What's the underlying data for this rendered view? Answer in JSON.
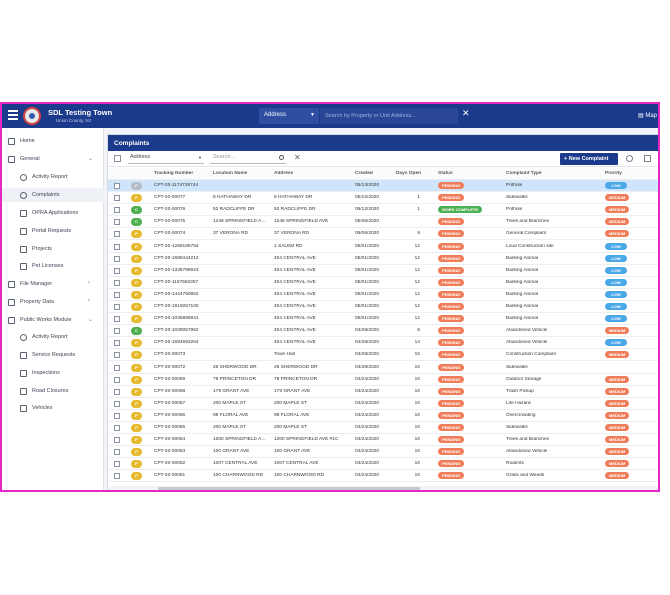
{
  "header": {
    "title": "SDL Testing Town",
    "subtitle": "Union County, NJ",
    "search_scope": "Address",
    "search_placeholder": "Search by Property or Unit Address...",
    "map_label": "Map"
  },
  "sidebar": {
    "items": [
      {
        "label": "Home",
        "icon": "home-icon",
        "level": 0
      },
      {
        "label": "General",
        "icon": "list-icon",
        "level": 0,
        "expanded": true
      },
      {
        "label": "Activity Report",
        "icon": "activity-icon",
        "level": 1
      },
      {
        "label": "Complaints",
        "icon": "info-icon",
        "level": 1,
        "active": true
      },
      {
        "label": "OPRA Applications",
        "icon": "document-icon",
        "level": 1
      },
      {
        "label": "Portal Requests",
        "icon": "request-icon",
        "level": 1
      },
      {
        "label": "Projects",
        "icon": "projects-icon",
        "level": 1
      },
      {
        "label": "Pet Licenses",
        "icon": "paw-icon",
        "level": 1
      },
      {
        "label": "File Manager",
        "icon": "folder-icon",
        "level": 0,
        "expanded": false
      },
      {
        "label": "Property Data",
        "icon": "building-icon",
        "level": 0,
        "expanded": false
      },
      {
        "label": "Public Works Module",
        "icon": "grid-icon",
        "level": 0,
        "expanded": true
      },
      {
        "label": "Activity Report",
        "icon": "activity-icon",
        "level": 1
      },
      {
        "label": "Service Requests",
        "icon": "service-icon",
        "level": 1
      },
      {
        "label": "Inspections",
        "icon": "inspection-icon",
        "level": 1
      },
      {
        "label": "Road Closures",
        "icon": "road-icon",
        "level": 1
      },
      {
        "label": "Vehicles",
        "icon": "truck-icon",
        "level": 1
      }
    ]
  },
  "main": {
    "title": "Complaints",
    "filter_field": "Address",
    "search_placeholder": "Search...",
    "new_button": "New Complaint",
    "columns": [
      "Tracking Number",
      "Location Name",
      "Address",
      "Created",
      "Days Open",
      "Status",
      "Complaint Type",
      "Priority"
    ],
    "rows": [
      {
        "dot": "P",
        "tracking": "CPT-20-1174726744",
        "location": "",
        "address": "",
        "created": "05/13/2020",
        "days": "",
        "status": "PENDING",
        "type": "Pothole",
        "priority": "LOW",
        "selected": true
      },
      {
        "dot": "P",
        "tracking": "CPT-20-00077",
        "location": "8 HATHAWAY DR",
        "address": "8 HATHAWAY DR",
        "created": "05/12/2020",
        "days": "1",
        "status": "PENDING",
        "type": "Sidewalks",
        "priority": "MEDIUM"
      },
      {
        "dot": "C",
        "tracking": "CPT-20-00076",
        "location": "52 RADCLIFFE DR",
        "address": "52 RADCLIFFE DR",
        "created": "05/12/2020",
        "days": "1",
        "status": "WORK COMPLETE",
        "type": "Pothole",
        "priority": "MEDIUM"
      },
      {
        "dot": "C",
        "tracking": "CPT-20-00075",
        "location": "1248 SPRINGFIELD A...",
        "address": "1248 SPRINGFIELD AVE",
        "created": "05/06/2020",
        "days": "",
        "status": "PENDING",
        "type": "Trees and Branches",
        "priority": "MEDIUM"
      },
      {
        "dot": "P",
        "tracking": "CPT-20-00074",
        "location": "37 VERONA RD",
        "address": "37 VERONA RD",
        "created": "05/06/2020",
        "days": "6",
        "status": "PENDING",
        "type": "General Complaint",
        "priority": "MEDIUM"
      },
      {
        "dot": "P",
        "tracking": "CPT-20-1268185754",
        "location": "",
        "address": "1 SALEM RD",
        "created": "05/01/2020",
        "days": "12",
        "status": "PENDING",
        "type": "Loud Construction site",
        "priority": "LOW"
      },
      {
        "dot": "P",
        "tracking": "CPT-20-1689444212",
        "location": "",
        "address": "404 CENTRAL AVE",
        "created": "05/01/2020",
        "days": "12",
        "status": "PENDING",
        "type": "Barking Animal",
        "priority": "LOW"
      },
      {
        "dot": "P",
        "tracking": "CPT-20-1336798923",
        "location": "",
        "address": "404 CENTRAL AVE",
        "created": "05/01/2020",
        "days": "12",
        "status": "PENDING",
        "type": "Barking Animal",
        "priority": "LOW"
      },
      {
        "dot": "P",
        "tracking": "CPT-20-1167682357",
        "location": "",
        "address": "404 CENTRAL AVE",
        "created": "05/01/2020",
        "days": "12",
        "status": "PENDING",
        "type": "Barking Animal",
        "priority": "LOW"
      },
      {
        "dot": "P",
        "tracking": "CPT-20-1444760952",
        "location": "",
        "address": "404 CENTRAL AVE",
        "created": "05/01/2020",
        "days": "12",
        "status": "PENDING",
        "type": "Barking Animal",
        "priority": "LOW"
      },
      {
        "dot": "P",
        "tracking": "CPT-20-1919257100",
        "location": "",
        "address": "404 CENTRAL AVE",
        "created": "05/01/2020",
        "days": "12",
        "status": "PENDING",
        "type": "Barking Animal",
        "priority": "LOW"
      },
      {
        "dot": "P",
        "tracking": "CPT-20-1035886941",
        "location": "",
        "address": "404 CENTRAL AVE",
        "created": "05/01/2020",
        "days": "12",
        "status": "PENDING",
        "type": "Barking Animal",
        "priority": "LOW"
      },
      {
        "dot": "C",
        "tracking": "CPT-20-1039057962",
        "location": "",
        "address": "404 CENTRAL AVE",
        "created": "04/29/2020",
        "days": "6",
        "status": "PENDING",
        "type": "Abandoned Vehicle",
        "priority": "MEDIUM"
      },
      {
        "dot": "P",
        "tracking": "CPT-20-1694593264",
        "location": "",
        "address": "404 CENTRAL AVE",
        "created": "04/29/2020",
        "days": "14",
        "status": "PENDING",
        "type": "Abandoned Vehicle",
        "priority": "LOW"
      },
      {
        "dot": "P",
        "tracking": "CPT-20-00073",
        "location": "",
        "address": "Town Hall",
        "created": "04/28/2020",
        "days": "15",
        "status": "PENDING",
        "type": "Construction Complaint",
        "priority": "MEDIUM"
      },
      {
        "dot": "P",
        "tracking": "CPT-20-00072",
        "location": "26 SHERWOOD DR",
        "address": "26 SHERWOOD DR",
        "created": "04/28/2020",
        "days": "15",
        "status": "PENDING",
        "type": "Sidewalks",
        "priority": ""
      },
      {
        "dot": "P",
        "tracking": "CPT-20-00069",
        "location": "79 PRINCETON DR",
        "address": "79 PRINCETON DR",
        "created": "04/24/2020",
        "days": "18",
        "status": "PENDING",
        "type": "Outdoor Storage",
        "priority": "MEDIUM"
      },
      {
        "dot": "P",
        "tracking": "CPT-20-00068",
        "location": "179 GRANT AVE",
        "address": "179 GRANT AVE",
        "created": "04/24/2020",
        "days": "18",
        "status": "PENDING",
        "type": "Trash Pickup",
        "priority": "MEDIUM"
      },
      {
        "dot": "P",
        "tracking": "CPT-20-00067",
        "location": "200 MAPLE ST",
        "address": "200 MAPLE ST",
        "created": "04/24/2020",
        "days": "18",
        "status": "PENDING",
        "type": "Life Hazard",
        "priority": "MEDIUM"
      },
      {
        "dot": "P",
        "tracking": "CPT-20-00066",
        "location": "98 FLORAL AVE",
        "address": "98 FLORAL AVE",
        "created": "04/24/2020",
        "days": "18",
        "status": "PENDING",
        "type": "Overcrowding",
        "priority": "MEDIUM"
      },
      {
        "dot": "P",
        "tracking": "CPT-20-00065",
        "location": "200 MAPLE ST",
        "address": "200 MAPLE ST",
        "created": "04/24/2020",
        "days": "18",
        "status": "PENDING",
        "type": "Sidewalks",
        "priority": "MEDIUM"
      },
      {
        "dot": "P",
        "tracking": "CPT-20-00064",
        "location": "1200 SPRINGFIELD A...",
        "address": "1200 SPRINGFIELD AVE #1C",
        "created": "04/24/2020",
        "days": "18",
        "status": "PENDING",
        "type": "Trees and Branches",
        "priority": "MEDIUM"
      },
      {
        "dot": "P",
        "tracking": "CPT-20-00063",
        "location": "100 GRANT AVE",
        "address": "100 GRANT AVE",
        "created": "04/24/2020",
        "days": "18",
        "status": "PENDING",
        "type": "Abandoned Vehicle",
        "priority": "MEDIUM"
      },
      {
        "dot": "P",
        "tracking": "CPT-20-00062",
        "location": "1007 CENTRAL AVE",
        "address": "1007 CENTRAL AVE",
        "created": "04/24/2020",
        "days": "18",
        "status": "PENDING",
        "type": "Rodents",
        "priority": "MEDIUM"
      },
      {
        "dot": "P",
        "tracking": "CPT-20-00061",
        "location": "100 CHARNWOOD RD",
        "address": "100 CHARNWOOD RD",
        "created": "04/24/2020",
        "days": "18",
        "status": "PENDING",
        "type": "Grass and Weeds",
        "priority": "MEDIUM"
      }
    ]
  },
  "colors": {
    "brand": "#1c3a8c",
    "pending": "#ef7d5a",
    "complete": "#4caf50",
    "low": "#4aa8e8",
    "medium": "#ef7d5a",
    "dot_p": "#e6b92e",
    "dot_c": "#4caf50",
    "dot_gray": "#b8bcc4"
  }
}
